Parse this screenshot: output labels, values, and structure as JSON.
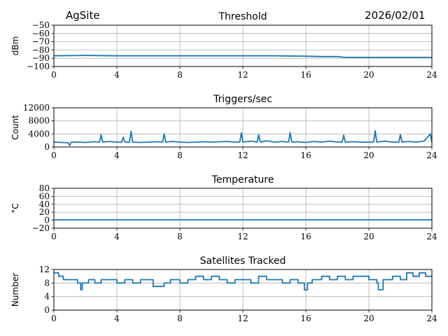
{
  "header": {
    "site": "AgSite",
    "date": "2026/02/01"
  },
  "colors": {
    "series": "#1f77b4",
    "grid": "#b0b0b0",
    "axis": "#000000"
  },
  "chart_data": [
    {
      "type": "line",
      "title": "Threshold",
      "ylabel": "dBm",
      "xlim": [
        0,
        24
      ],
      "xticks": [
        0,
        4,
        8,
        12,
        16,
        20,
        24
      ],
      "ylim": [
        -100,
        -50
      ],
      "yticks": [
        -100,
        -90,
        -80,
        -70,
        -60,
        -50
      ],
      "grid": true,
      "x": [
        0,
        2,
        4,
        6,
        8,
        10,
        12,
        14,
        16,
        17,
        18,
        18.5,
        20,
        22,
        24
      ],
      "values": [
        -87,
        -86.5,
        -87,
        -87,
        -87,
        -87,
        -87,
        -87,
        -87.5,
        -88,
        -88,
        -89,
        -89,
        -89,
        -89
      ]
    },
    {
      "type": "line",
      "title": "Triggers/sec",
      "ylabel": "Count",
      "xlim": [
        0,
        24
      ],
      "xticks": [
        0,
        4,
        8,
        12,
        16,
        20,
        24
      ],
      "ylim": [
        0,
        12000
      ],
      "yticks": [
        0,
        4000,
        8000,
        12000
      ],
      "grid": true,
      "x": [
        0,
        0.5,
        0.9,
        1,
        1.1,
        1.5,
        2,
        2.5,
        2.9,
        3,
        3.1,
        3.5,
        4,
        4.3,
        4.4,
        4.5,
        4.8,
        4.9,
        5,
        5.5,
        6,
        6.5,
        6.9,
        7,
        7.1,
        7.5,
        8,
        8.5,
        9,
        9.5,
        10,
        10.5,
        11,
        11.5,
        11.8,
        11.9,
        12,
        12.5,
        12.9,
        13,
        13.1,
        13.5,
        14,
        14.5,
        14.9,
        15,
        15.1,
        15.5,
        16,
        16.5,
        17,
        17.5,
        18,
        18.3,
        18.4,
        18.5,
        19,
        19.5,
        20,
        20.3,
        20.4,
        20.5,
        21,
        21.5,
        21.9,
        22,
        22.1,
        22.5,
        23,
        23.5,
        23.9,
        24
      ],
      "values": [
        1500,
        1400,
        1300,
        500,
        1500,
        1500,
        1400,
        1600,
        1500,
        3800,
        1500,
        1700,
        1500,
        1500,
        3000,
        1500,
        1500,
        4800,
        1500,
        1400,
        1500,
        1600,
        1500,
        4000,
        1500,
        1700,
        1500,
        1400,
        1500,
        1600,
        1500,
        1600,
        1700,
        1500,
        1500,
        4400,
        1500,
        1800,
        1500,
        3800,
        1500,
        1900,
        1500,
        1700,
        1500,
        4400,
        1500,
        1600,
        1400,
        1700,
        1500,
        1800,
        1500,
        1500,
        3600,
        1500,
        1600,
        1500,
        1500,
        1500,
        5000,
        1500,
        1800,
        1500,
        1500,
        3800,
        1500,
        1700,
        1500,
        1800,
        4000,
        1500
      ]
    },
    {
      "type": "line",
      "title": "Temperature",
      "ylabel": "°C",
      "xlim": [
        0,
        24
      ],
      "xticks": [
        0,
        4,
        8,
        12,
        16,
        20,
        24
      ],
      "ylim": [
        -20,
        80
      ],
      "yticks": [
        -20,
        0,
        20,
        40,
        60,
        80
      ],
      "grid": true,
      "x": [
        0,
        24
      ],
      "values": [
        1,
        1
      ]
    },
    {
      "type": "line",
      "title": "Satellites Tracked",
      "ylabel": "Number",
      "xlim": [
        0,
        24
      ],
      "xticks": [
        0,
        4,
        8,
        12,
        16,
        20,
        24
      ],
      "ylim": [
        0,
        12
      ],
      "yticks": [
        0,
        4,
        8,
        12
      ],
      "grid": true,
      "step": true,
      "x": [
        0,
        0.3,
        0.6,
        1,
        1.5,
        1.7,
        1.8,
        2.2,
        2.6,
        3,
        3.5,
        4,
        4.5,
        5,
        5.5,
        6,
        6.3,
        7,
        7.4,
        8,
        8.5,
        9,
        9.5,
        10,
        10.5,
        11,
        11.5,
        12,
        12.5,
        13,
        13.5,
        14,
        14.5,
        15,
        15.5,
        15.9,
        16.1,
        16.4,
        17,
        17.5,
        18,
        18.5,
        19,
        19.5,
        20,
        20.5,
        20.6,
        20.9,
        21.5,
        22,
        22.4,
        22.8,
        23.2,
        23.6,
        24
      ],
      "values": [
        11,
        10,
        9,
        9,
        8,
        6,
        8,
        9,
        8,
        9,
        9,
        8,
        9,
        8,
        9,
        9,
        7,
        8,
        9,
        8,
        9,
        10,
        9,
        10,
        9,
        8,
        9,
        9,
        8,
        10,
        9,
        9,
        8,
        9,
        8,
        6,
        8,
        9,
        10,
        9,
        10,
        9,
        10,
        10,
        9,
        8,
        6,
        9,
        10,
        9,
        11,
        10,
        11,
        10,
        10
      ]
    }
  ]
}
